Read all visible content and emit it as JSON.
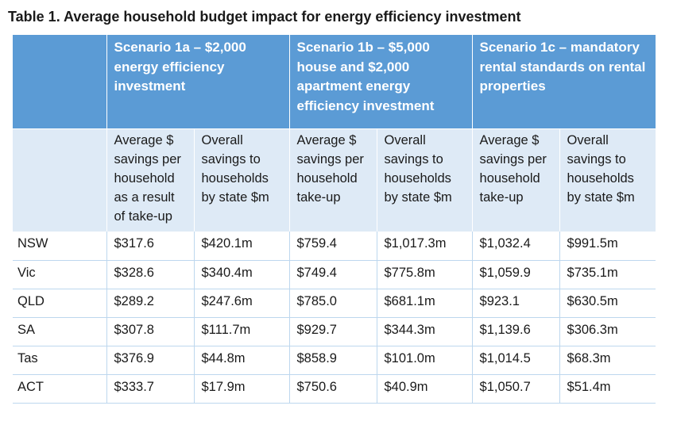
{
  "caption": "Table 1. Average household budget impact for energy efficiency investment",
  "scenarios": [
    "Scenario 1a – $2,000 energy efficiency investment",
    "Scenario 1b – $5,000 house and $2,000 apartment energy efficiency investment",
    "Scenario 1c – mandatory rental standards on rental properties"
  ],
  "subheaders": [
    "Average $ savings per household as a result of take-up",
    "Overall savings to households by state $m",
    "Average $ savings per household take-up",
    "Overall savings to households by state $m",
    "Average $ savings per household take-up",
    "Overall savings to households by state $m"
  ],
  "rows": [
    {
      "state": "NSW",
      "values": [
        "$317.6",
        "$420.1m",
        "$759.4",
        "$1,017.3m",
        "$1,032.4",
        "$991.5m"
      ]
    },
    {
      "state": "Vic",
      "values": [
        "$328.6",
        "$340.4m",
        "$749.4",
        "$775.8m",
        "$1,059.9",
        "$735.1m"
      ]
    },
    {
      "state": "QLD",
      "values": [
        "$289.2",
        "$247.6m",
        "$785.0",
        "$681.1m",
        "$923.1",
        "$630.5m"
      ]
    },
    {
      "state": "SA",
      "values": [
        "$307.8",
        "$111.7m",
        "$929.7",
        "$344.3m",
        "$1,139.6",
        "$306.3m"
      ]
    },
    {
      "state": "Tas",
      "values": [
        "$376.9",
        "$44.8m",
        "$858.9",
        "$101.0m",
        "$1,014.5",
        "$68.3m"
      ]
    },
    {
      "state": "ACT",
      "values": [
        "$333.7",
        "$17.9m",
        "$750.6",
        "$40.9m",
        "$1,050.7",
        "$51.4m"
      ]
    }
  ]
}
